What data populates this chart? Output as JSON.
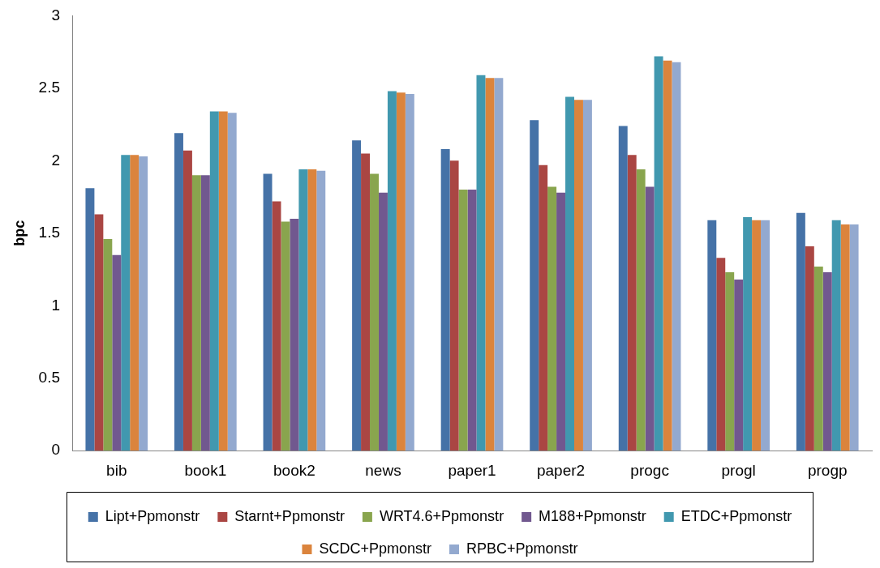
{
  "chart_data": {
    "type": "bar",
    "ylabel": "bpc",
    "categories": [
      "bib",
      "book1",
      "book2",
      "news",
      "paper1",
      "paper2",
      "progc",
      "progl",
      "progp"
    ],
    "series": [
      {
        "name": "Lipt+Ppmonstr",
        "color": "#4572a7",
        "values": [
          1.81,
          2.19,
          1.91,
          2.14,
          2.08,
          2.28,
          2.24,
          1.59,
          1.64
        ]
      },
      {
        "name": "Starnt+Ppmonstr",
        "color": "#aa4643",
        "values": [
          1.63,
          2.07,
          1.72,
          2.05,
          2.0,
          1.97,
          2.04,
          1.33,
          1.41
        ]
      },
      {
        "name": "WRT4.6+Ppmonstr",
        "color": "#89a54e",
        "values": [
          1.46,
          1.9,
          1.58,
          1.91,
          1.8,
          1.82,
          1.94,
          1.23,
          1.27
        ]
      },
      {
        "name": "M188+Ppmonstr",
        "color": "#71588f",
        "values": [
          1.35,
          1.9,
          1.6,
          1.78,
          1.8,
          1.78,
          1.82,
          1.18,
          1.23
        ]
      },
      {
        "name": "ETDC+Ppmonstr",
        "color": "#4198af",
        "values": [
          2.04,
          2.34,
          1.94,
          2.48,
          2.59,
          2.44,
          2.72,
          1.61,
          1.59
        ]
      },
      {
        "name": "SCDC+Ppmonstr",
        "color": "#db843d",
        "values": [
          2.04,
          2.34,
          1.94,
          2.47,
          2.57,
          2.42,
          2.69,
          1.59,
          1.56
        ]
      },
      {
        "name": "RPBC+Ppmonstr",
        "color": "#93a9cf",
        "values": [
          2.03,
          2.33,
          1.93,
          2.46,
          2.57,
          2.42,
          2.68,
          1.59,
          1.56
        ]
      }
    ],
    "ylim": [
      0,
      3
    ],
    "yticks": [
      0,
      0.5,
      1,
      1.5,
      2,
      2.5,
      3
    ],
    "grid": false,
    "legend": "bottom"
  }
}
